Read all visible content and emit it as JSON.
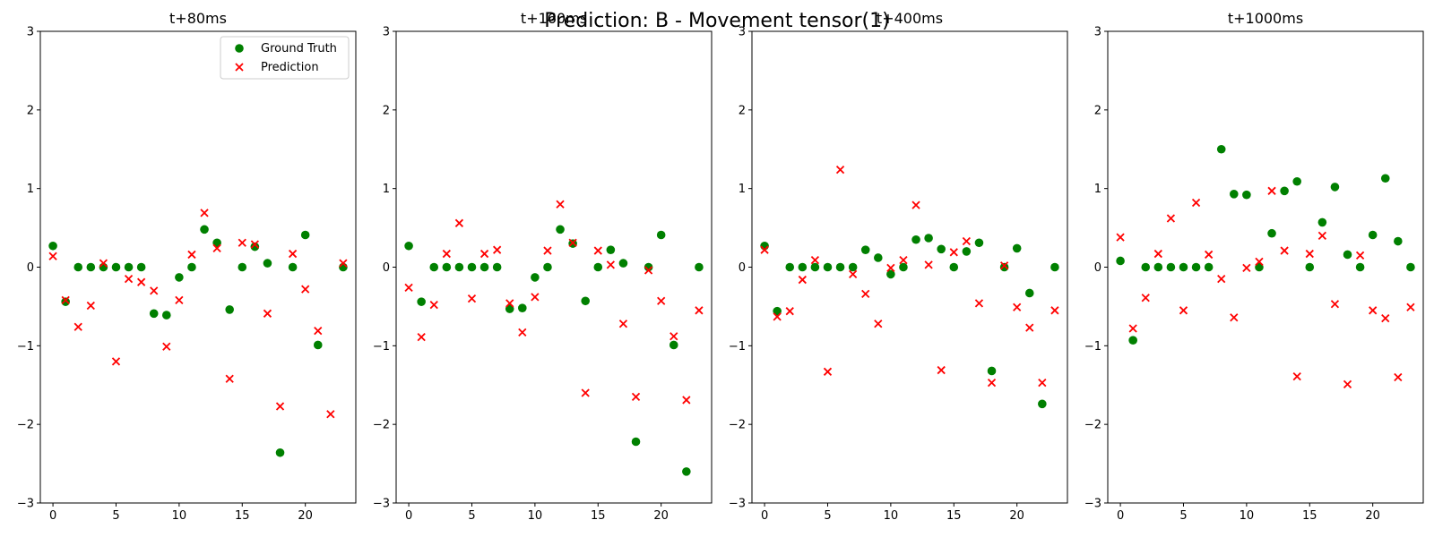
{
  "chart_data": {
    "type": "scatter",
    "suptitle": "Prediction: B - Movement tensor(1)",
    "colors": {
      "ground_truth": "#008000",
      "prediction": "#ff0000"
    },
    "legend": {
      "placement": "upper-right",
      "entries": [
        "Ground Truth",
        "Prediction"
      ]
    },
    "grid": false,
    "panels": [
      {
        "title": "t+80ms",
        "xlim": [
          -1,
          24
        ],
        "ylim": [
          -3,
          3
        ],
        "xticks": [
          0,
          5,
          10,
          15,
          20
        ],
        "yticks": [
          -3,
          -2,
          -1,
          0,
          1,
          2,
          3
        ],
        "series": [
          {
            "name": "Ground Truth",
            "marker": "circle",
            "x": [
              0,
              1,
              2,
              3,
              4,
              5,
              6,
              7,
              8,
              9,
              10,
              11,
              12,
              13,
              14,
              15,
              16,
              17,
              18,
              19,
              20,
              21,
              23
            ],
            "y": [
              0.27,
              -0.44,
              0,
              0,
              0,
              0,
              0,
              0,
              -0.59,
              -0.61,
              -0.13,
              0,
              0.48,
              0.31,
              -0.54,
              0,
              0.26,
              0.05,
              -2.36,
              0,
              0.41,
              -0.99,
              0
            ]
          },
          {
            "name": "Prediction",
            "marker": "x",
            "x": [
              0,
              1,
              2,
              3,
              4,
              5,
              6,
              7,
              8,
              9,
              10,
              11,
              12,
              13,
              14,
              15,
              16,
              17,
              18,
              19,
              20,
              21,
              22,
              23
            ],
            "y": [
              0.14,
              -0.42,
              -0.76,
              -0.49,
              0.05,
              -1.2,
              -0.15,
              -0.19,
              -0.3,
              -1.01,
              -0.42,
              0.16,
              0.69,
              0.24,
              -1.42,
              0.31,
              0.29,
              -0.59,
              -1.77,
              0.17,
              -0.28,
              -0.81,
              -1.87,
              0.05
            ]
          }
        ]
      },
      {
        "title": "t+160ms",
        "xlim": [
          -1,
          24
        ],
        "ylim": [
          -3,
          3
        ],
        "xticks": [
          0,
          5,
          10,
          15,
          20
        ],
        "yticks": [
          -3,
          -2,
          -1,
          0,
          1,
          2,
          3
        ],
        "series": [
          {
            "name": "Ground Truth",
            "marker": "circle",
            "x": [
              0,
              1,
              2,
              3,
              4,
              5,
              6,
              7,
              8,
              9,
              10,
              11,
              12,
              13,
              14,
              15,
              16,
              17,
              18,
              19,
              20,
              21,
              22,
              23
            ],
            "y": [
              0.27,
              -0.44,
              0,
              0,
              0,
              0,
              0,
              0,
              -0.53,
              -0.52,
              -0.13,
              0,
              0.48,
              0.3,
              -0.43,
              0,
              0.22,
              0.05,
              -2.22,
              0,
              0.41,
              -0.99,
              -2.6,
              0
            ]
          },
          {
            "name": "Prediction",
            "marker": "x",
            "x": [
              0,
              1,
              2,
              3,
              4,
              5,
              6,
              7,
              8,
              9,
              10,
              11,
              12,
              13,
              14,
              15,
              16,
              17,
              18,
              19,
              20,
              21,
              22,
              23
            ],
            "y": [
              -0.26,
              -0.89,
              -0.48,
              0.17,
              0.56,
              -0.4,
              0.17,
              0.22,
              -0.46,
              -0.83,
              -0.38,
              0.21,
              0.8,
              0.31,
              -1.6,
              0.21,
              0.03,
              -0.72,
              -1.65,
              -0.04,
              -0.43,
              -0.88,
              -1.69,
              -0.55
            ]
          }
        ]
      },
      {
        "title": "t+400ms",
        "xlim": [
          -1,
          24
        ],
        "ylim": [
          -3,
          3
        ],
        "xticks": [
          0,
          5,
          10,
          15,
          20
        ],
        "yticks": [
          -3,
          -2,
          -1,
          0,
          1,
          2,
          3
        ],
        "series": [
          {
            "name": "Ground Truth",
            "marker": "circle",
            "x": [
              0,
              1,
              2,
              3,
              4,
              5,
              6,
              7,
              8,
              9,
              10,
              11,
              12,
              13,
              14,
              15,
              16,
              17,
              18,
              19,
              20,
              21,
              22,
              23
            ],
            "y": [
              0.27,
              -0.56,
              0,
              0,
              0,
              0,
              0,
              0,
              0.22,
              0.12,
              -0.09,
              0,
              0.35,
              0.37,
              0.23,
              0,
              0.2,
              0.31,
              -1.32,
              0,
              0.24,
              -0.33,
              -1.74,
              0
            ]
          },
          {
            "name": "Prediction",
            "marker": "x",
            "x": [
              0,
              1,
              2,
              3,
              4,
              5,
              6,
              7,
              8,
              9,
              10,
              11,
              12,
              13,
              14,
              15,
              16,
              17,
              18,
              19,
              20,
              21,
              22,
              23
            ],
            "y": [
              0.22,
              -0.63,
              -0.56,
              -0.16,
              0.09,
              -1.33,
              1.24,
              -0.09,
              -0.34,
              -0.72,
              -0.01,
              0.09,
              0.79,
              0.03,
              -1.31,
              0.19,
              0.33,
              -0.46,
              -1.47,
              0.02,
              -0.51,
              -0.77,
              -1.47,
              -0.55
            ]
          }
        ]
      },
      {
        "title": "t+1000ms",
        "xlim": [
          -1,
          24
        ],
        "ylim": [
          -3,
          3
        ],
        "xticks": [
          0,
          5,
          10,
          15,
          20
        ],
        "yticks": [
          -3,
          -2,
          -1,
          0,
          1,
          2,
          3
        ],
        "series": [
          {
            "name": "Ground Truth",
            "marker": "circle",
            "x": [
              0,
              1,
              2,
              3,
              4,
              5,
              6,
              7,
              8,
              9,
              10,
              11,
              12,
              13,
              14,
              15,
              16,
              17,
              18,
              19,
              20,
              21,
              22,
              23
            ],
            "y": [
              0.08,
              -0.93,
              0,
              0,
              0,
              0,
              0,
              0,
              1.5,
              0.93,
              0.92,
              0,
              0.43,
              0.97,
              1.09,
              0,
              0.57,
              1.02,
              0.16,
              0,
              0.41,
              1.13,
              0.33,
              0
            ]
          },
          {
            "name": "Prediction",
            "marker": "x",
            "x": [
              0,
              1,
              2,
              3,
              4,
              5,
              6,
              7,
              8,
              9,
              10,
              11,
              12,
              13,
              14,
              15,
              16,
              17,
              18,
              19,
              20,
              21,
              22,
              23
            ],
            "y": [
              0.38,
              -0.78,
              -0.39,
              0.17,
              0.62,
              -0.55,
              0.82,
              0.16,
              -0.15,
              -0.64,
              -0.01,
              0.07,
              0.97,
              0.21,
              -1.39,
              0.17,
              0.4,
              -0.47,
              -1.49,
              0.15,
              -0.55,
              -0.65,
              -1.4,
              -0.51
            ]
          }
        ]
      }
    ]
  }
}
